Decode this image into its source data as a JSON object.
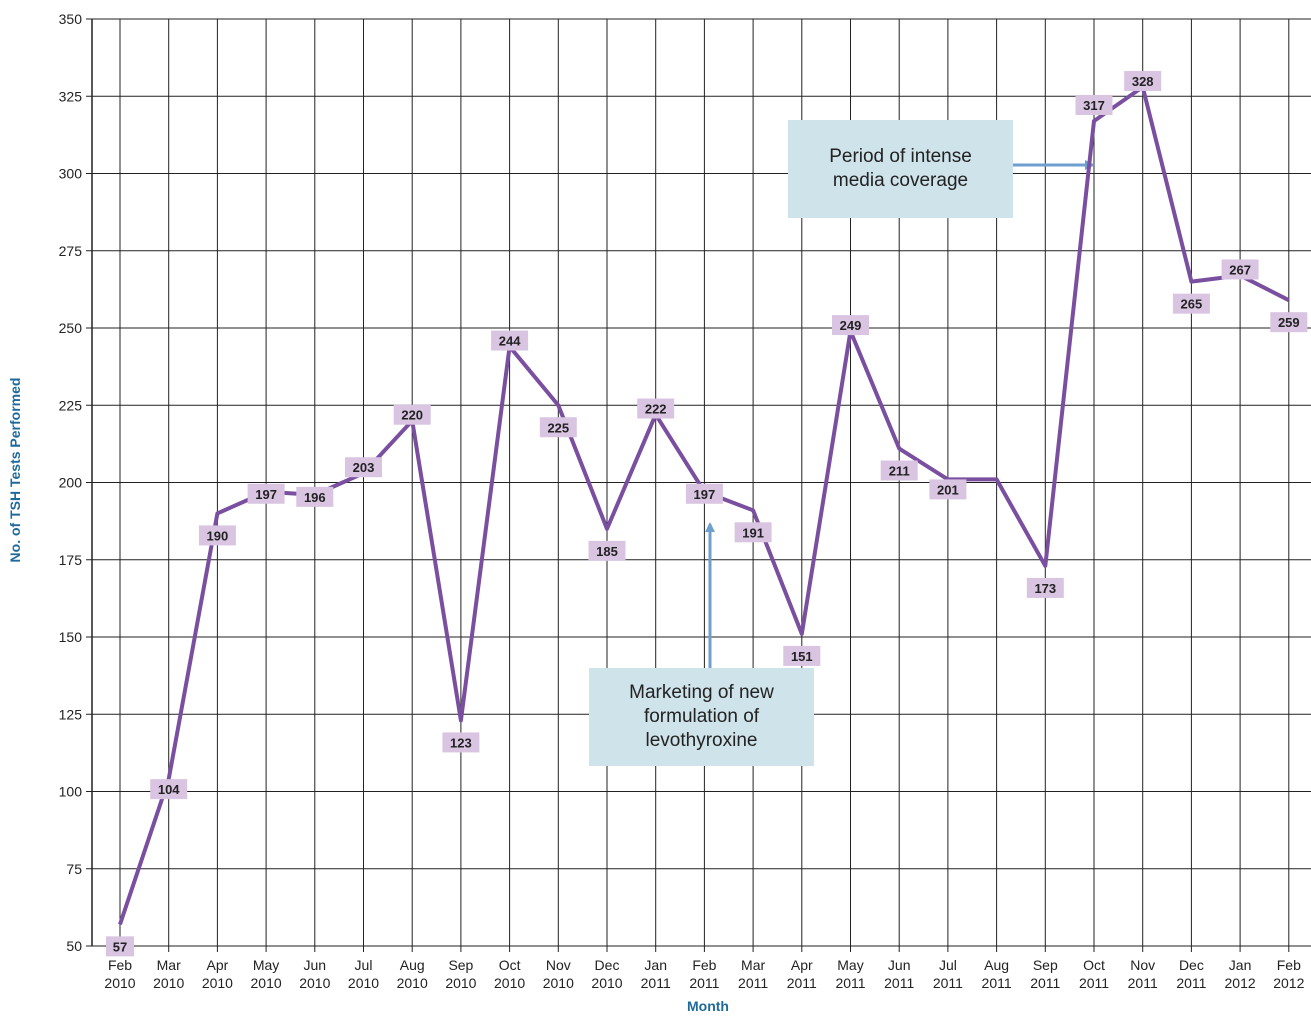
{
  "chart_data": {
    "type": "line",
    "title": "",
    "xlabel": "Month",
    "ylabel": "No. of TSH Tests Performed",
    "ylim": [
      50,
      350
    ],
    "yticks": [
      50,
      75,
      100,
      125,
      150,
      175,
      200,
      225,
      250,
      275,
      300,
      325,
      350
    ],
    "grid": true,
    "categories": [
      [
        "Feb",
        "2010"
      ],
      [
        "Mar",
        "2010"
      ],
      [
        "Apr",
        "2010"
      ],
      [
        "May",
        "2010"
      ],
      [
        "Jun",
        "2010"
      ],
      [
        "Jul",
        "2010"
      ],
      [
        "Aug",
        "2010"
      ],
      [
        "Sep",
        "2010"
      ],
      [
        "Oct",
        "2010"
      ],
      [
        "Nov",
        "2010"
      ],
      [
        "Dec",
        "2010"
      ],
      [
        "Jan",
        "2011"
      ],
      [
        "Feb",
        "2011"
      ],
      [
        "Mar",
        "2011"
      ],
      [
        "Apr",
        "2011"
      ],
      [
        "May",
        "2011"
      ],
      [
        "Jun",
        "2011"
      ],
      [
        "Jul",
        "2011"
      ],
      [
        "Aug",
        "2011"
      ],
      [
        "Sep",
        "2011"
      ],
      [
        "Oct",
        "2011"
      ],
      [
        "Nov",
        "2011"
      ],
      [
        "Dec",
        "2011"
      ],
      [
        "Jan",
        "2012"
      ],
      [
        "Feb",
        "2012"
      ]
    ],
    "series": [
      {
        "values": [
          57,
          104,
          190,
          197,
          196,
          203,
          220,
          123,
          244,
          225,
          185,
          222,
          197,
          191,
          151,
          249,
          211,
          201,
          201,
          173,
          317,
          328,
          265,
          267,
          259
        ],
        "labels": [
          "57",
          "104",
          "190",
          "197",
          "196",
          "203",
          "220",
          "123",
          "244",
          "225",
          "185",
          "222",
          "197",
          "191",
          "151",
          "249",
          "211",
          "201",
          "",
          "173",
          "317",
          "328",
          "265",
          "267",
          "259"
        ],
        "color": "#7b4fa0",
        "label_bg": "#d9c4e2"
      }
    ],
    "annotations": [
      {
        "text": "Period of intense media coverage",
        "lines": [
          "Period of intense",
          "media coverage"
        ],
        "arrow_to": "Oct 2011"
      },
      {
        "text": "Marketing of new formulation of levothyroxine",
        "lines": [
          "Marketing of new",
          "formulation of",
          "levothyroxine"
        ],
        "arrow_to": "Feb 2011"
      }
    ],
    "colors": {
      "line": "#7b4fa0",
      "label_bg": "#d9c4e2",
      "annotation_bg": "#cfe3ea",
      "arrow": "#6f9fcf",
      "axis_title": "#1f6a9c",
      "grid": "#222222"
    }
  }
}
